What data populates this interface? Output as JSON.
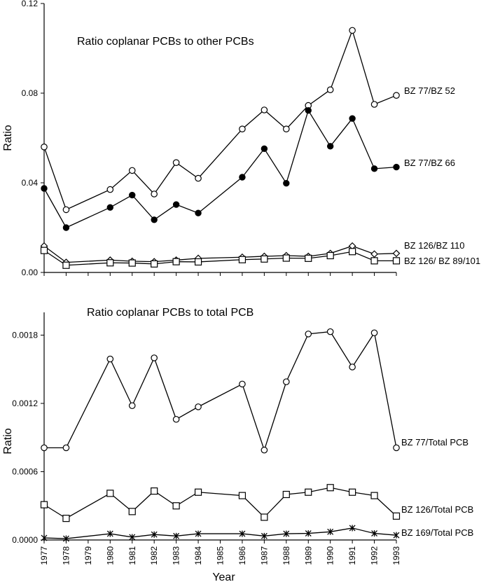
{
  "chart_data": [
    {
      "type": "line",
      "title": "Ratio coplanar PCBs to other PCBs",
      "ylabel": "Ratio",
      "xlabel": "",
      "ylim": [
        0,
        0.12
      ],
      "yticks": [
        "0.00",
        "0.04",
        "0.08",
        "0.12"
      ],
      "ytick_values": [
        0,
        0.04,
        0.08,
        0.12
      ],
      "xlim": [
        1977,
        1993
      ],
      "grid": false,
      "series": [
        {
          "name": "BZ 77/BZ 52",
          "marker": "circle-open",
          "x": [
            1977,
            1978,
            1980,
            1981,
            1982,
            1983,
            1984,
            1986,
            1987,
            1988,
            1989,
            1990,
            1991,
            1992,
            1993
          ],
          "y": [
            0.056,
            0.028,
            0.037,
            0.0455,
            0.035,
            0.049,
            0.042,
            0.064,
            0.0725,
            0.064,
            0.0745,
            0.0815,
            0.108,
            0.075,
            0.079
          ]
        },
        {
          "name": "BZ 77/BZ 66",
          "marker": "circle-filled",
          "x": [
            1977,
            1978,
            1980,
            1981,
            1982,
            1983,
            1984,
            1986,
            1987,
            1988,
            1989,
            1990,
            1991,
            1992,
            1993
          ],
          "y": [
            0.0375,
            0.02,
            0.029,
            0.0345,
            0.0235,
            0.0303,
            0.0265,
            0.0425,
            0.0552,
            0.0398,
            0.0723,
            0.0563,
            0.0687,
            0.0463,
            0.047
          ]
        },
        {
          "name": "BZ 126/BZ 110",
          "marker": "diamond-open",
          "x": [
            1977,
            1978,
            1980,
            1981,
            1982,
            1983,
            1984,
            1986,
            1987,
            1988,
            1989,
            1990,
            1991,
            1992,
            1993
          ],
          "y": [
            0.0118,
            0.0045,
            0.0055,
            0.005,
            0.0048,
            0.0055,
            0.0063,
            0.0068,
            0.0072,
            0.0075,
            0.0072,
            0.0085,
            0.0118,
            0.0082,
            0.0085
          ]
        },
        {
          "name": "BZ 126/  BZ 89/101",
          "marker": "square-open",
          "x": [
            1977,
            1978,
            1980,
            1981,
            1982,
            1983,
            1984,
            1986,
            1987,
            1988,
            1989,
            1990,
            1991,
            1992,
            1993
          ],
          "y": [
            0.0098,
            0.0032,
            0.0043,
            0.0042,
            0.0038,
            0.0048,
            0.0047,
            0.0057,
            0.006,
            0.0064,
            0.0063,
            0.0075,
            0.0093,
            0.0052,
            0.0052
          ]
        }
      ]
    },
    {
      "type": "line",
      "title": "Ratio coplanar PCBs to total PCB",
      "ylabel": "Ratio",
      "xlabel": "Year",
      "ylim": [
        0,
        0.002
      ],
      "yticks": [
        "0.0000",
        "0.0006",
        "0.0012",
        "0.0018"
      ],
      "ytick_values": [
        0,
        0.0006,
        0.0012,
        0.0018
      ],
      "xticks": [
        "1977",
        "1978",
        "1979",
        "1980",
        "1981",
        "1982",
        "1983",
        "1984",
        "1985",
        "1986",
        "1987",
        "1988",
        "1989",
        "1990",
        "1991",
        "1992",
        "1993"
      ],
      "xlim": [
        1977,
        1993
      ],
      "grid": false,
      "series": [
        {
          "name": "BZ 77/Total PCB",
          "marker": "circle-open",
          "x": [
            1977,
            1978,
            1980,
            1981,
            1982,
            1983,
            1984,
            1986,
            1987,
            1988,
            1989,
            1990,
            1991,
            1992,
            1993
          ],
          "y": [
            0.00081,
            0.00081,
            0.00159,
            0.00118,
            0.0016,
            0.00106,
            0.00117,
            0.00137,
            0.00079,
            0.00139,
            0.00181,
            0.00183,
            0.00152,
            0.00182,
            0.00081
          ]
        },
        {
          "name": "BZ 126/Total PCB",
          "marker": "square-open",
          "x": [
            1977,
            1978,
            1980,
            1981,
            1982,
            1983,
            1984,
            1986,
            1987,
            1988,
            1989,
            1990,
            1991,
            1992,
            1993
          ],
          "y": [
            0.00031,
            0.00019,
            0.00041,
            0.00025,
            0.00043,
            0.0003,
            0.00042,
            0.00039,
            0.0002,
            0.0004,
            0.00042,
            0.00046,
            0.00042,
            0.00039,
            0.00021
          ]
        },
        {
          "name": "BZ 169/Total PCB",
          "marker": "asterisk",
          "x": [
            1977,
            1978,
            1980,
            1981,
            1982,
            1983,
            1984,
            1986,
            1987,
            1988,
            1989,
            1990,
            1991,
            1992,
            1993
          ],
          "y": [
            1.8e-05,
            1.2e-05,
            5.5e-05,
            2.5e-05,
            4.8e-05,
            3.5e-05,
            5.5e-05,
            5.5e-05,
            3.5e-05,
            5.5e-05,
            5.8e-05,
            7.2e-05,
            0.000105,
            5.8e-05,
            4.2e-05
          ]
        }
      ]
    }
  ]
}
